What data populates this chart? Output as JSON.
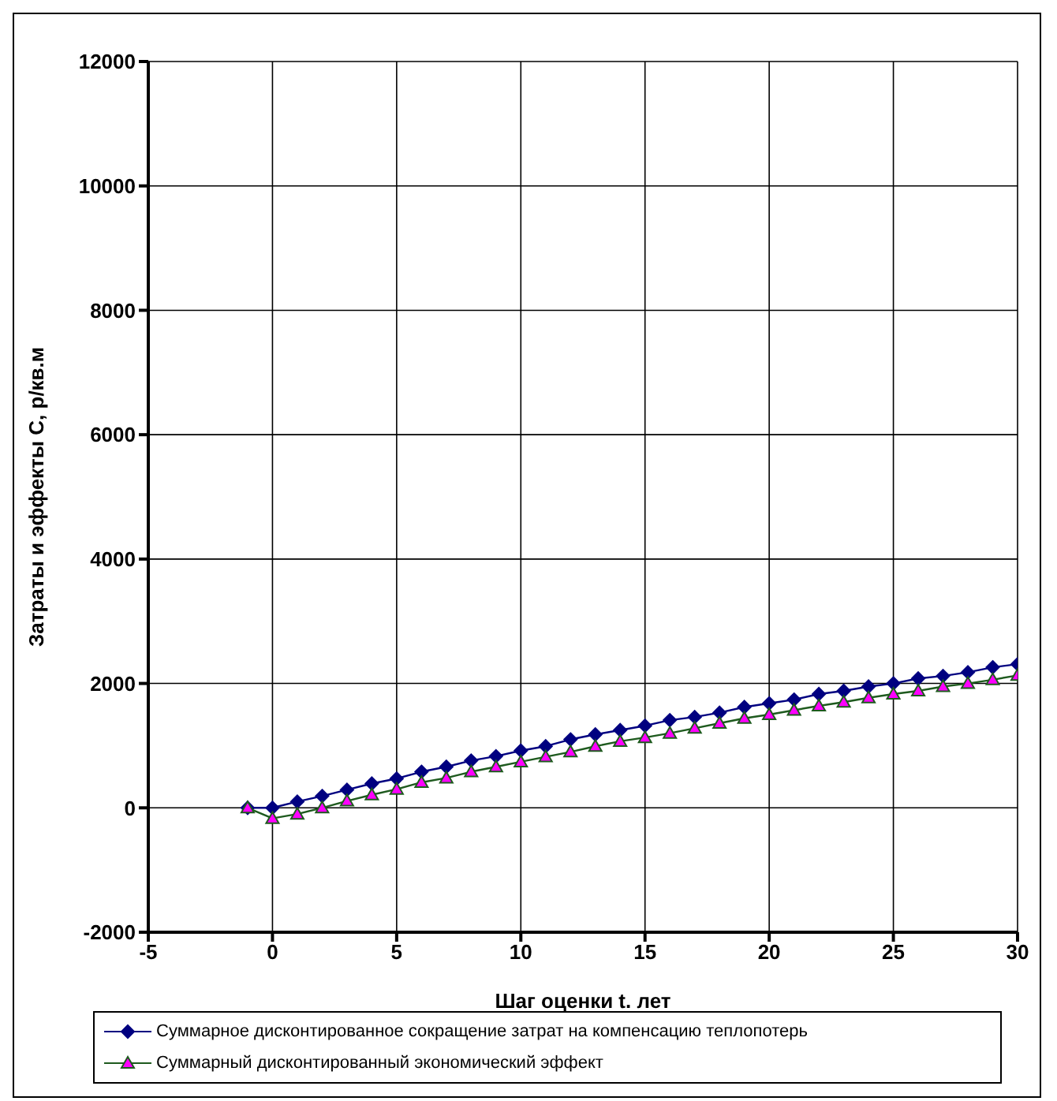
{
  "chart_data": {
    "type": "line",
    "xlabel": "Шаг оценки t. лет",
    "ylabel": "Затраты и эффекты С, р/кв.м",
    "x": [
      -1,
      0,
      1,
      2,
      3,
      4,
      5,
      6,
      7,
      8,
      9,
      10,
      11,
      12,
      13,
      14,
      15,
      16,
      17,
      18,
      19,
      20,
      21,
      22,
      23,
      24,
      25,
      26,
      27,
      28,
      29,
      30
    ],
    "series": [
      {
        "name": "Суммарное дисконтированное сокращение затрат на компенсацию теплопотерь",
        "color": "#000080",
        "marker": "diamond",
        "values": [
          0,
          0,
          100,
          190,
          290,
          390,
          470,
          580,
          660,
          760,
          830,
          920,
          990,
          1100,
          1180,
          1250,
          1320,
          1410,
          1460,
          1530,
          1620,
          1680,
          1740,
          1830,
          1880,
          1950,
          2000,
          2080,
          2120,
          2180,
          2260,
          2310
        ]
      },
      {
        "name": "Суммарный дисконтированный экономический эффект",
        "color": "#1e5a1e",
        "marker": "triangle",
        "values": [
          0,
          -170,
          -100,
          0,
          110,
          210,
          300,
          410,
          480,
          580,
          660,
          740,
          820,
          900,
          990,
          1070,
          1130,
          1200,
          1280,
          1360,
          1440,
          1500,
          1570,
          1640,
          1700,
          1770,
          1830,
          1880,
          1950,
          2000,
          2060,
          2130
        ]
      }
    ],
    "xlim": [
      -5,
      30
    ],
    "xticks": [
      -5,
      0,
      5,
      10,
      15,
      20,
      25,
      30
    ],
    "ylim": [
      -2000,
      12000
    ],
    "yticks": [
      -2000,
      0,
      2000,
      4000,
      6000,
      8000,
      10000,
      12000
    ],
    "grid": true,
    "legend": "bottom"
  }
}
